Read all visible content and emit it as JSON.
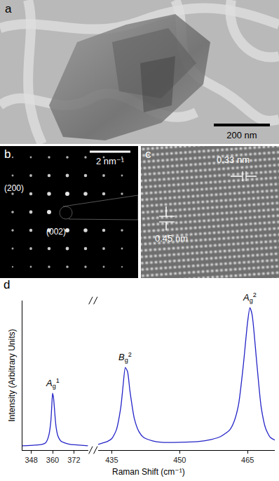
{
  "panels": [
    {
      "label": "a",
      "scale_bar": "200 nm"
    },
    {
      "label": "b",
      "scale_bar": "2 nm⁻¹",
      "spots": [
        "(200)",
        "(002)"
      ]
    },
    {
      "label": "c",
      "spacings": [
        "0.33 nm",
        "0.45 nm"
      ]
    }
  ],
  "chart_data": {
    "label": "d",
    "type": "line",
    "x_label": "Raman Shift (cm⁻¹)",
    "y_label": "Intensity (Arbitrary Units)",
    "color": "#2424c8",
    "ylim": [
      0,
      1.05
    ],
    "tick_labels": "x",
    "segments": [
      {
        "xlim": [
          343,
          380
        ],
        "xticks": [
          348,
          360,
          372
        ],
        "x": [
          343,
          350,
          354,
          356,
          357,
          358,
          359,
          359.5,
          360,
          360.5,
          361,
          361.5,
          362,
          363,
          364,
          365,
          367,
          370,
          375,
          380
        ],
        "values": [
          0.03,
          0.035,
          0.04,
          0.05,
          0.07,
          0.11,
          0.2,
          0.3,
          0.4,
          0.37,
          0.3,
          0.22,
          0.16,
          0.1,
          0.075,
          0.06,
          0.05,
          0.04,
          0.035,
          0.03
        ],
        "peaks": [
          {
            "symbol": "A",
            "sub": "g",
            "sup": "1",
            "x": 360,
            "y": 0.4
          }
        ]
      },
      {
        "xlim": [
          432,
          471
        ],
        "xticks": [
          435,
          450,
          465
        ],
        "x": [
          432,
          433,
          434,
          435,
          436,
          437,
          437.5,
          438,
          438.5,
          439,
          440,
          441,
          442,
          444,
          446,
          450,
          454,
          457,
          459,
          461,
          462,
          463,
          464,
          465,
          465.5,
          466,
          467,
          468,
          469,
          470,
          471
        ],
        "values": [
          0.04,
          0.05,
          0.06,
          0.08,
          0.14,
          0.3,
          0.45,
          0.58,
          0.55,
          0.42,
          0.22,
          0.13,
          0.09,
          0.065,
          0.055,
          0.055,
          0.06,
          0.075,
          0.095,
          0.14,
          0.2,
          0.32,
          0.58,
          0.9,
          1.0,
          0.95,
          0.62,
          0.3,
          0.15,
          0.09,
          0.07
        ],
        "peaks": [
          {
            "symbol": "B",
            "sub": "g",
            "sup": "2",
            "x": 438,
            "y": 0.58
          },
          {
            "symbol": "A",
            "sub": "g",
            "sup": "2",
            "x": 465.5,
            "y": 1.0
          }
        ]
      }
    ]
  }
}
